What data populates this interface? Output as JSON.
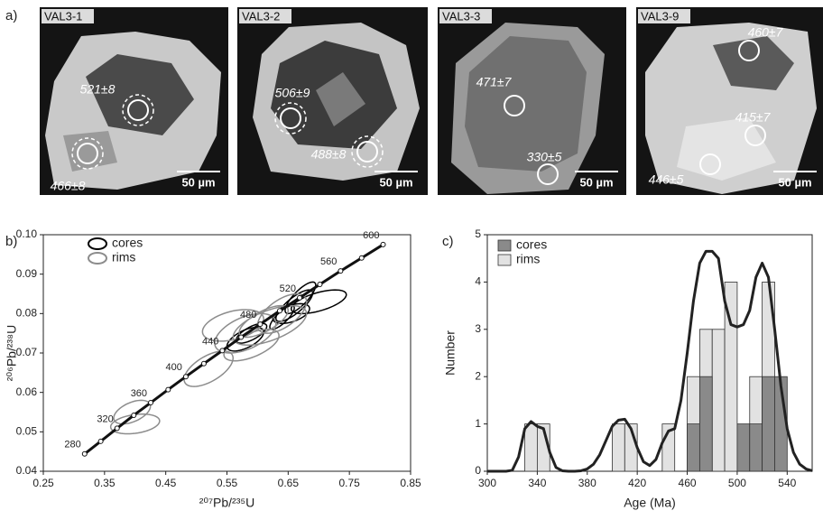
{
  "panel_labels": [
    "a)",
    "b)",
    "c)"
  ],
  "images": [
    {
      "sample": "VAL3-1",
      "scale_bar": "50 µm",
      "ages": [
        "521±8",
        "466±8"
      ]
    },
    {
      "sample": "VAL3-2",
      "scale_bar": "50 µm",
      "ages": [
        "506±9",
        "488±8"
      ]
    },
    {
      "sample": "VAL3-3",
      "scale_bar": "50 µm",
      "ages": [
        "471±7",
        "330±5"
      ]
    },
    {
      "sample": "VAL3-9",
      "scale_bar": "50 µm",
      "ages": [
        "460±7",
        "415±7",
        "446±5"
      ]
    }
  ],
  "chart_data": [
    {
      "type": "concordia",
      "x_label": "²⁰⁷Pb/²³⁵U",
      "y_label": "²⁰⁶Pb/²³⁸U",
      "xlim": [
        0.25,
        0.85
      ],
      "ylim": [
        0.04,
        0.1
      ],
      "xticks": [
        0.25,
        0.35,
        0.45,
        0.55,
        0.65,
        0.75,
        0.85
      ],
      "yticks": [
        0.04,
        0.05,
        0.06,
        0.07,
        0.08,
        0.09,
        {
          "value": 0.1,
          "label": "0.10"
        }
      ],
      "curve": {
        "color": "#111111",
        "x": [
          0.3175,
          0.3438,
          0.3705,
          0.3978,
          0.4255,
          0.4539,
          0.4828,
          0.5123,
          0.5424,
          0.5731,
          0.6043,
          0.6362,
          0.6687,
          0.7018,
          0.7356,
          0.77,
          0.8051
        ],
        "values": [
          0.0444,
          0.0476,
          0.0509,
          0.0542,
          0.0574,
          0.0607,
          0.064,
          0.0673,
          0.0706,
          0.074,
          0.0773,
          0.0807,
          0.084,
          0.0874,
          0.0908,
          0.0941,
          0.0975
        ],
        "point_labels": [
          "280",
          null,
          "320",
          null,
          "360",
          null,
          "400",
          null,
          "440",
          null,
          "480",
          null,
          "520",
          null,
          "560",
          null,
          "600"
        ]
      },
      "series": [
        {
          "name": "cores",
          "color": "#000000",
          "ellipses": [
            {
              "x": 0.66,
              "y": 0.082,
              "x_err": 0.03,
              "y_err": 0.004,
              "rho": 0.8
            },
            {
              "x": 0.7,
              "y": 0.083,
              "x_err": 0.045,
              "y_err": 0.003,
              "rho": 0.6
            },
            {
              "x": 0.59,
              "y": 0.075,
              "x_err": 0.025,
              "y_err": 0.0025,
              "rho": 0.7
            },
            {
              "x": 0.64,
              "y": 0.079,
              "x_err": 0.02,
              "y_err": 0.003,
              "rho": 0.8
            },
            {
              "x": 0.67,
              "y": 0.084,
              "x_err": 0.025,
              "y_err": 0.004,
              "rho": 0.8
            },
            {
              "x": 0.58,
              "y": 0.0735,
              "x_err": 0.03,
              "y_err": 0.003,
              "rho": 0.6
            },
            {
              "x": 0.655,
              "y": 0.08,
              "x_err": 0.03,
              "y_err": 0.0025,
              "rho": 0.5
            }
          ]
        },
        {
          "name": "rims",
          "color": "#8c8c8c",
          "ellipses": [
            {
              "x": 0.4,
              "y": 0.052,
              "x_err": 0.04,
              "y_err": 0.0025,
              "rho": 0.3
            },
            {
              "x": 0.395,
              "y": 0.055,
              "x_err": 0.03,
              "y_err": 0.003,
              "rho": 0.5
            },
            {
              "x": 0.52,
              "y": 0.066,
              "x_err": 0.04,
              "y_err": 0.0045,
              "rho": 0.6
            },
            {
              "x": 0.56,
              "y": 0.077,
              "x_err": 0.05,
              "y_err": 0.004,
              "rho": 0.4
            },
            {
              "x": 0.58,
              "y": 0.075,
              "x_err": 0.05,
              "y_err": 0.005,
              "rho": 0.5
            },
            {
              "x": 0.62,
              "y": 0.077,
              "x_err": 0.06,
              "y_err": 0.005,
              "rho": 0.6
            },
            {
              "x": 0.59,
              "y": 0.072,
              "x_err": 0.045,
              "y_err": 0.004,
              "rho": 0.6
            },
            {
              "x": 0.61,
              "y": 0.078,
              "x_err": 0.04,
              "y_err": 0.004,
              "rho": 0.7
            },
            {
              "x": 0.64,
              "y": 0.08,
              "x_err": 0.04,
              "y_err": 0.005,
              "rho": 0.6
            }
          ]
        }
      ]
    },
    {
      "type": "histogram",
      "x_label": "Age (Ma)",
      "y_label": "Number",
      "xlim": [
        300,
        560
      ],
      "ylim": [
        0,
        5
      ],
      "xticks": [
        300,
        340,
        380,
        420,
        460,
        500,
        540
      ],
      "yticks": [
        0,
        1,
        2,
        3,
        4,
        5
      ],
      "bins": [
        330,
        340,
        350,
        360,
        370,
        380,
        390,
        400,
        410,
        420,
        430,
        440,
        450,
        460,
        470,
        480,
        490,
        500,
        510,
        520,
        530,
        540
      ],
      "series": [
        {
          "name": "cores",
          "color": "#8a8a8a",
          "values": [
            0,
            0,
            0,
            0,
            0,
            0,
            0,
            0,
            0,
            0,
            0,
            0,
            0,
            1,
            2,
            0,
            0,
            1,
            1,
            2,
            2
          ]
        },
        {
          "name": "rims",
          "color": "#e2e2e2",
          "values": [
            1,
            1,
            0,
            0,
            0,
            0,
            0,
            1,
            1,
            0,
            0,
            1,
            0,
            2,
            3,
            3,
            4,
            0,
            2,
            4,
            0
          ]
        }
      ],
      "kde": {
        "color": "#222222",
        "x": [
          300,
          305,
          310,
          315,
          320,
          325,
          330,
          335,
          340,
          345,
          350,
          355,
          360,
          365,
          370,
          375,
          380,
          385,
          390,
          395,
          400,
          405,
          410,
          415,
          420,
          425,
          430,
          435,
          440,
          445,
          450,
          455,
          460,
          465,
          470,
          475,
          480,
          485,
          490,
          495,
          500,
          505,
          510,
          515,
          520,
          525,
          530,
          535,
          540,
          545,
          550,
          555,
          560
        ],
        "values": [
          0,
          0,
          0,
          0,
          0.02,
          0.3,
          0.9,
          1.05,
          0.95,
          0.9,
          0.4,
          0.08,
          0.01,
          0,
          0,
          0.01,
          0.05,
          0.15,
          0.35,
          0.65,
          0.95,
          1.08,
          1.1,
          0.9,
          0.5,
          0.2,
          0.12,
          0.25,
          0.6,
          0.85,
          0.9,
          1.5,
          2.5,
          3.6,
          4.4,
          4.65,
          4.65,
          4.5,
          3.6,
          3.1,
          3.05,
          3.1,
          3.4,
          4.1,
          4.4,
          4.1,
          3,
          1.8,
          0.9,
          0.4,
          0.15,
          0.05,
          0.01
        ]
      }
    }
  ]
}
